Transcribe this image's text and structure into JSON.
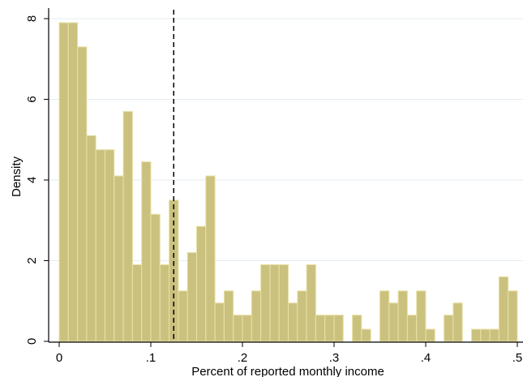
{
  "chart_data": {
    "type": "bar",
    "subtype": "histogram",
    "xlabel": "Percent of reported monthly income",
    "ylabel": "Density",
    "xlim": [
      0,
      0.5
    ],
    "ylim": [
      0,
      8
    ],
    "bin_width": 0.01,
    "x_ticks": [
      {
        "value": 0,
        "label": "0"
      },
      {
        "value": 0.1,
        "label": ".1"
      },
      {
        "value": 0.2,
        "label": ".2"
      },
      {
        "value": 0.3,
        "label": ".3"
      },
      {
        "value": 0.4,
        "label": ".4"
      },
      {
        "value": 0.5,
        "label": ".5"
      }
    ],
    "y_ticks": [
      {
        "value": 0,
        "label": "0"
      },
      {
        "value": 2,
        "label": "2"
      },
      {
        "value": 4,
        "label": "4"
      },
      {
        "value": 6,
        "label": "6"
      },
      {
        "value": 8,
        "label": "8"
      }
    ],
    "bin_starts": [
      0,
      0.01,
      0.02,
      0.03,
      0.04,
      0.05,
      0.06,
      0.07,
      0.08,
      0.09,
      0.1,
      0.11,
      0.12,
      0.13,
      0.14,
      0.15,
      0.16,
      0.17,
      0.18,
      0.19,
      0.2,
      0.21,
      0.22,
      0.23,
      0.24,
      0.25,
      0.26,
      0.27,
      0.28,
      0.29,
      0.3,
      0.31,
      0.32,
      0.33,
      0.34,
      0.35,
      0.36,
      0.37,
      0.38,
      0.39,
      0.4,
      0.41,
      0.42,
      0.43,
      0.44,
      0.45,
      0.46,
      0.47,
      0.48,
      0.49
    ],
    "values": [
      7.9,
      7.9,
      7.3,
      5.1,
      4.75,
      4.75,
      4.1,
      5.7,
      1.9,
      4.45,
      3.15,
      1.9,
      3.5,
      1.25,
      2.2,
      2.85,
      4.1,
      0.95,
      1.25,
      0.65,
      0.65,
      1.25,
      1.9,
      1.9,
      1.9,
      0.95,
      1.25,
      1.9,
      0.65,
      0.65,
      0.65,
      0,
      0.65,
      0.3,
      0,
      1.25,
      0.95,
      1.25,
      0.65,
      1.25,
      0.3,
      0,
      0.65,
      0.95,
      0,
      0.3,
      0.3,
      0.3,
      1.6,
      1.25
    ],
    "reference_line": {
      "x": 0.125,
      "style": "dashed"
    },
    "grid": "horizontal",
    "colors": {
      "bar_fill": "#cbc17f",
      "bar_stroke": "#e8e1a6",
      "grid": "#e6edf3",
      "axis": "#000000"
    }
  }
}
